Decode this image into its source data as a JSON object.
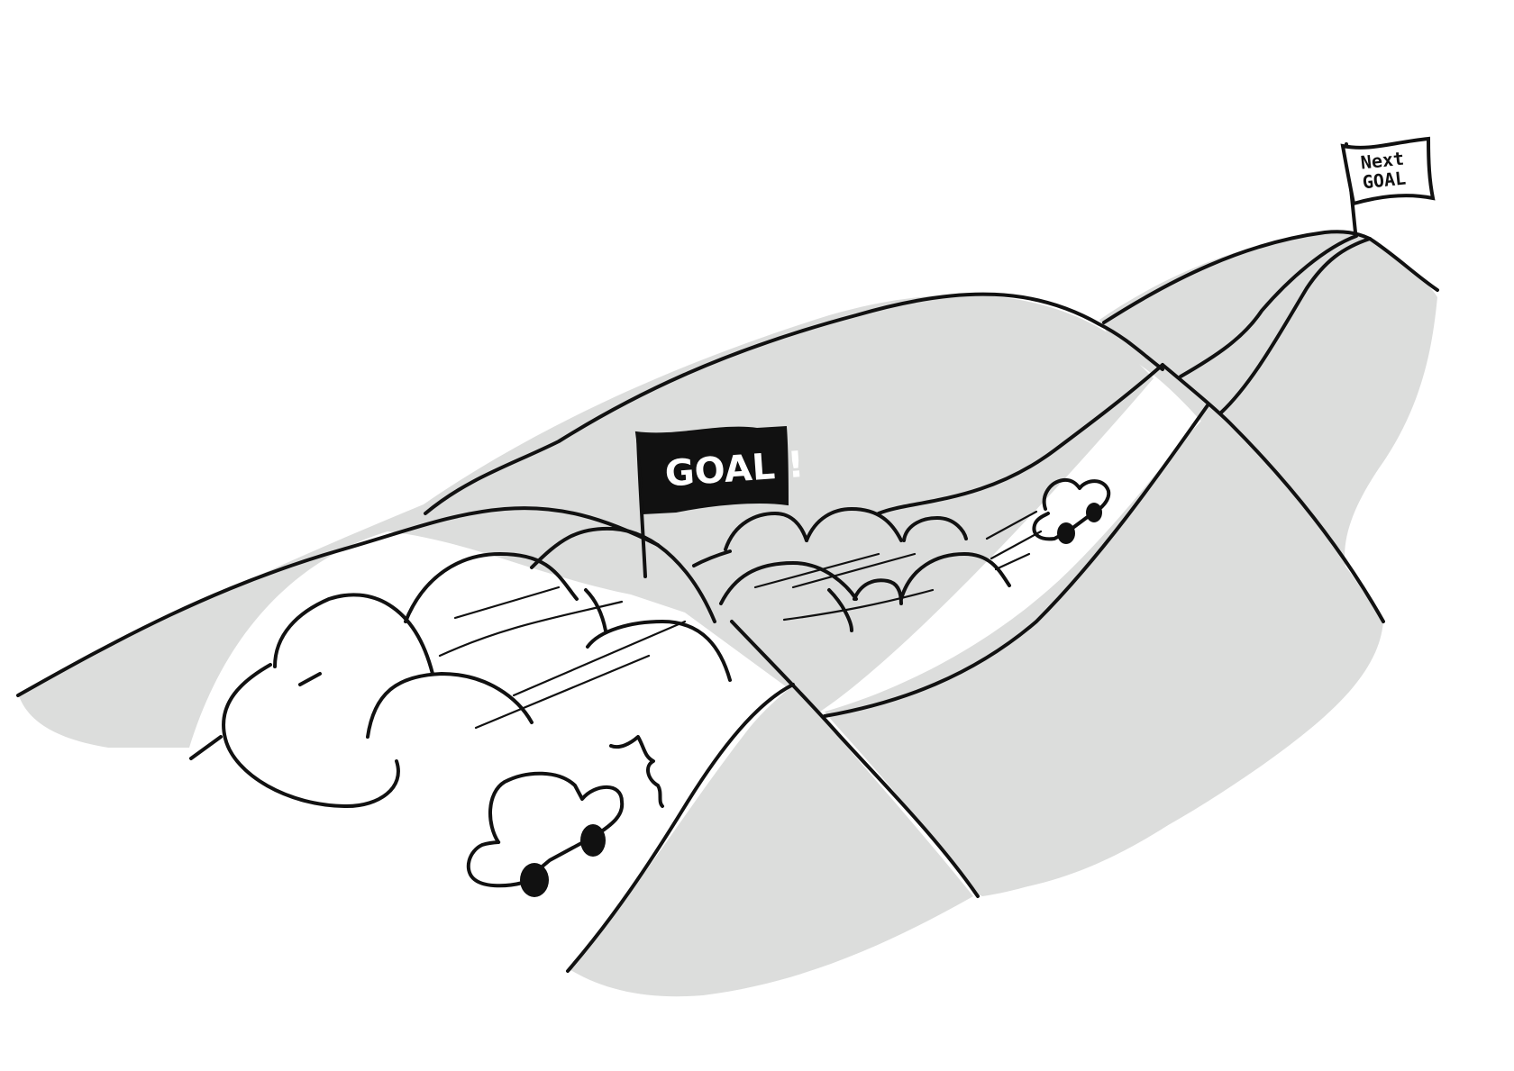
{
  "flags": {
    "goal": {
      "text": "GOAL !"
    },
    "next_goal": {
      "line1": "Next",
      "line2": "GOAL"
    }
  },
  "colors": {
    "ink": "#111111",
    "hill_fill": "#dcdddc",
    "paper": "#ffffff"
  }
}
